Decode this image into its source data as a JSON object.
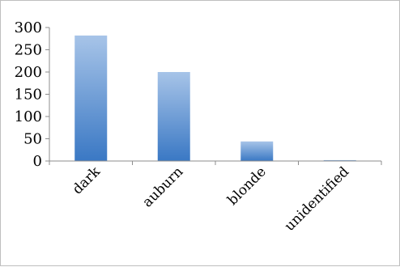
{
  "chart_data": {
    "type": "bar",
    "categories": [
      "dark",
      "auburn",
      "blonde",
      "unidentified"
    ],
    "values": [
      282,
      200,
      44,
      2
    ],
    "ylim": [
      0,
      300
    ],
    "yticks": [
      0,
      50,
      100,
      150,
      200,
      250,
      300
    ],
    "grid": false,
    "legend": "none",
    "colors": {
      "bar_top": "#a7c4e8",
      "bar_bottom": "#3a78c4",
      "axis": "#8c8c8c"
    }
  }
}
